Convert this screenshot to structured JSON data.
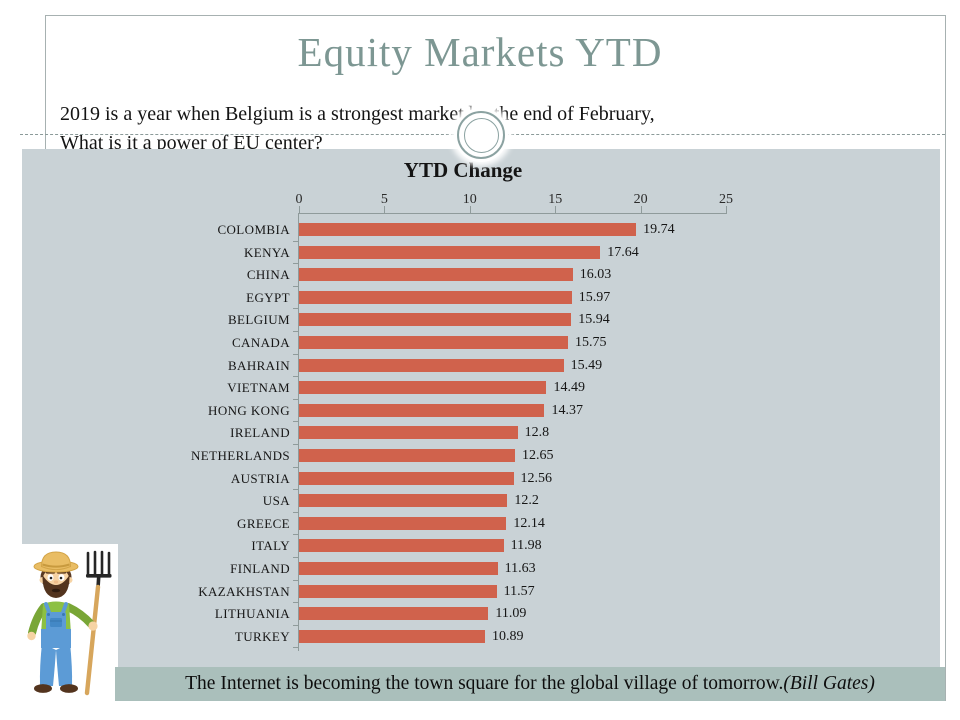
{
  "slide": {
    "title": "Equity Markets YTD",
    "subtitle_line1": "2019 is a year when Belgium is a strongest market by the end of February,",
    "subtitle_line2": "What is it a power of EU center?",
    "quote": {
      "text": "The Internet is becoming the town square for the global village of tomorrow. ",
      "attribution": "(Bill Gates)"
    },
    "decorations": {
      "farmer_illustration": "cartoon-farmer-with-pitchfork"
    }
  },
  "colors": {
    "title_text": "#7d9793",
    "content_background": "#c9d2d6",
    "quote_band_background": "#aabfbb",
    "bar": "#d0624c",
    "axis": "#8f9b9b"
  },
  "chart_data": {
    "type": "bar",
    "orientation": "horizontal",
    "title": "YTD Change",
    "categories": [
      "COLOMBIA",
      "KENYA",
      "CHINA",
      "EGYPT",
      "BELGIUM",
      "CANADA",
      "BAHRAIN",
      "VIETNAM",
      "HONG KONG",
      "IRELAND",
      "NETHERLANDS",
      "AUSTRIA",
      "USA",
      "GREECE",
      "ITALY",
      "FINLAND",
      "KAZAKHSTAN",
      "LITHUANIA",
      "TURKEY"
    ],
    "values": [
      19.74,
      17.64,
      16.03,
      15.97,
      15.94,
      15.75,
      15.49,
      14.49,
      14.37,
      12.8,
      12.65,
      12.56,
      12.2,
      12.14,
      11.98,
      11.63,
      11.57,
      11.09,
      10.89
    ],
    "x_ticks": [
      0,
      5,
      10,
      15,
      20,
      25
    ],
    "xlim": [
      0,
      25
    ],
    "value_labels_shown": true,
    "grid": false,
    "legend": false
  }
}
